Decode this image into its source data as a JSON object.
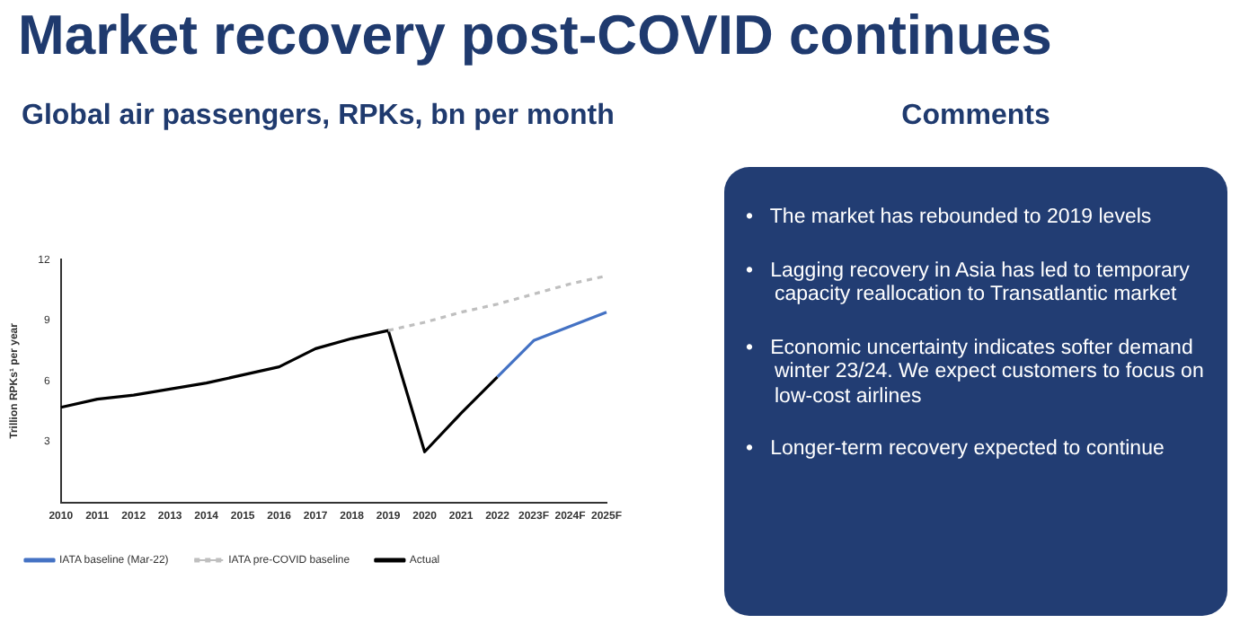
{
  "chart_data": [
    {
      "type": "line",
      "title": "Market recovery post-COVID continues",
      "subtitle": "Global air passengers, RPKs, bn per month",
      "ylabel": "Trillion RPKs¹ per year",
      "categories": [
        "2010",
        "2011",
        "2012",
        "2013",
        "2014",
        "2015",
        "2016",
        "2017",
        "2018",
        "2019",
        "2020",
        "2021",
        "2022",
        "2023F",
        "2024F",
        "2025F"
      ],
      "series": [
        {
          "name": "IATA baseline (Mar-22)",
          "color": "#4472c4",
          "values": [
            null,
            null,
            null,
            null,
            null,
            null,
            null,
            null,
            null,
            null,
            null,
            null,
            6.2,
            8.0,
            8.7,
            9.4
          ]
        },
        {
          "name": "IATA pre-COVID baseline",
          "color": "#bfbfbf",
          "line_style": "dashed",
          "values": [
            null,
            null,
            null,
            null,
            null,
            null,
            null,
            null,
            null,
            8.5,
            8.9,
            9.4,
            9.8,
            10.3,
            10.8,
            11.2
          ]
        },
        {
          "name": "Actual",
          "color": "#000000",
          "values": [
            4.7,
            5.1,
            5.3,
            5.6,
            5.9,
            6.3,
            6.7,
            7.6,
            8.1,
            8.5,
            2.5,
            4.4,
            6.2,
            null,
            null,
            null
          ]
        }
      ],
      "ylim": [
        0,
        12
      ],
      "yticks": [
        3,
        6,
        9,
        12
      ],
      "grid": false,
      "legend": "bottom",
      "marker": "none"
    },
    {
      "type": "other",
      "title": "Comments",
      "annotations": [
        "•   The market has rebounded to 2019 levels",
        "•   Lagging recovery in Asia has led to temporary capacity reallocation to Transatlantic market",
        "•   Economic uncertainty indicates softer demand winter 23/24. We expect customers to focus on low-cost airlines",
        "•   Longer-term recovery expected to continue"
      ]
    }
  ]
}
